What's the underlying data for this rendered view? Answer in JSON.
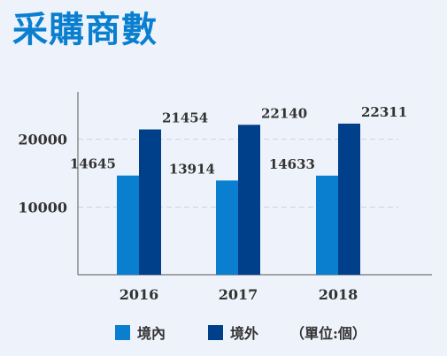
{
  "title": "采購商數",
  "chart_data": {
    "type": "bar",
    "categories": [
      "2016",
      "2017",
      "2018"
    ],
    "series": [
      {
        "name": "境內",
        "values": [
          14645,
          13914,
          14633
        ],
        "color": "#0a7fd0"
      },
      {
        "name": "境外",
        "values": [
          21454,
          22140,
          22311
        ],
        "color": "#003f8a"
      }
    ],
    "yticks": [
      10000,
      20000
    ],
    "ylim": [
      0,
      27000
    ],
    "grid": true,
    "legend_position": "bottom",
    "unit_note": "（單位:個）"
  }
}
